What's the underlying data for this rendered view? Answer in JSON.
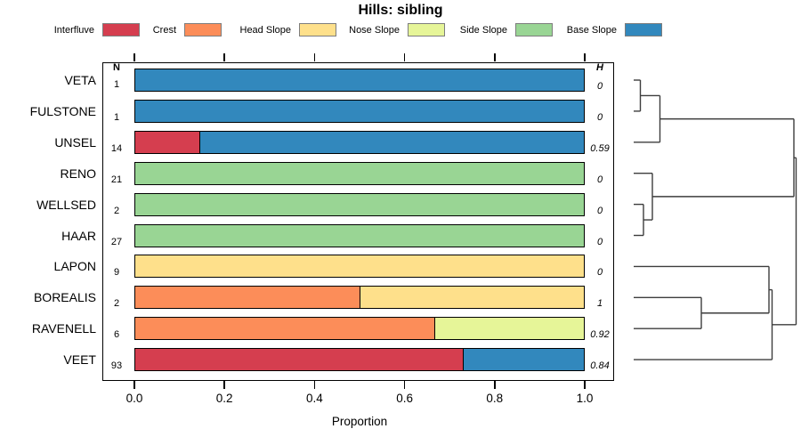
{
  "title": "Hills: sibling",
  "legend": {
    "items": [
      {
        "label": "Interfluve",
        "color": "#D53E4F"
      },
      {
        "label": "Crest",
        "color": "#FC8D59"
      },
      {
        "label": "Head Slope",
        "color": "#FEE08B"
      },
      {
        "label": "Nose Slope",
        "color": "#E6F598"
      },
      {
        "label": "Side Slope",
        "color": "#99D594"
      },
      {
        "label": "Base Slope",
        "color": "#3288BD"
      }
    ]
  },
  "columns": {
    "n_header": "N",
    "h_header": "H"
  },
  "axis": {
    "xlabel": "Proportion",
    "tick_labels": [
      "0.0",
      "0.2",
      "0.4",
      "0.6",
      "0.8",
      "1.0"
    ],
    "tick_values": [
      0,
      0.2,
      0.4,
      0.6,
      0.8,
      1.0
    ]
  },
  "chart_data": {
    "type": "bar",
    "stacked": true,
    "orientation": "horizontal",
    "title": "Hills: sibling",
    "xlabel": "Proportion",
    "xlim": [
      0,
      1
    ],
    "grid": false,
    "legend_position": "top",
    "rows": [
      {
        "label": "VETA",
        "n": "1",
        "h": "0",
        "segments": [
          {
            "class": "Base Slope",
            "value": 1.0
          }
        ]
      },
      {
        "label": "FULSTONE",
        "n": "1",
        "h": "0",
        "segments": [
          {
            "class": "Base Slope",
            "value": 1.0
          }
        ]
      },
      {
        "label": "UNSEL",
        "n": "14",
        "h": "0.59",
        "segments": [
          {
            "class": "Interfluve",
            "value": 0.143
          },
          {
            "class": "Base Slope",
            "value": 0.857
          }
        ]
      },
      {
        "label": "RENO",
        "n": "21",
        "h": "0",
        "segments": [
          {
            "class": "Side Slope",
            "value": 1.0
          }
        ]
      },
      {
        "label": "WELLSED",
        "n": "2",
        "h": "0",
        "segments": [
          {
            "class": "Side Slope",
            "value": 1.0
          }
        ]
      },
      {
        "label": "HAAR",
        "n": "27",
        "h": "0",
        "segments": [
          {
            "class": "Side Slope",
            "value": 1.0
          }
        ]
      },
      {
        "label": "LAPON",
        "n": "9",
        "h": "0",
        "segments": [
          {
            "class": "Head Slope",
            "value": 1.0
          }
        ]
      },
      {
        "label": "BOREALIS",
        "n": "2",
        "h": "1",
        "segments": [
          {
            "class": "Crest",
            "value": 0.5
          },
          {
            "class": "Head Slope",
            "value": 0.5
          }
        ]
      },
      {
        "label": "RAVENELL",
        "n": "6",
        "h": "0.92",
        "segments": [
          {
            "class": "Crest",
            "value": 0.667
          },
          {
            "class": "Nose Slope",
            "value": 0.333
          }
        ]
      },
      {
        "label": "VEET",
        "n": "93",
        "h": "0.84",
        "segments": [
          {
            "class": "Interfluve",
            "value": 0.731
          },
          {
            "class": "Base Slope",
            "value": 0.269
          }
        ]
      }
    ],
    "dendrogram": {
      "leaf_x": 712,
      "merges": [
        {
          "id": "m1",
          "children": [
            "VETA",
            "FULSTONE"
          ],
          "x": 719.5
        },
        {
          "id": "m2",
          "children": [
            "m1",
            "UNSEL"
          ],
          "x": 741.5
        },
        {
          "id": "m3",
          "children": [
            "WELLSED",
            "HAAR"
          ],
          "x": 723
        },
        {
          "id": "m4",
          "children": [
            "RENO",
            "m3"
          ],
          "x": 733
        },
        {
          "id": "m5",
          "children": [
            "m2",
            "m4"
          ],
          "x": 892
        },
        {
          "id": "m6",
          "children": [
            "BOREALIS",
            "RAVENELL"
          ],
          "x": 788
        },
        {
          "id": "m7",
          "children": [
            "LAPON",
            "m6"
          ],
          "x": 864
        },
        {
          "id": "m8",
          "children": [
            "m7",
            "VEET"
          ],
          "x": 867.5
        },
        {
          "id": "m9",
          "children": [
            "m5",
            "m8"
          ],
          "x": 894.5
        }
      ]
    }
  }
}
